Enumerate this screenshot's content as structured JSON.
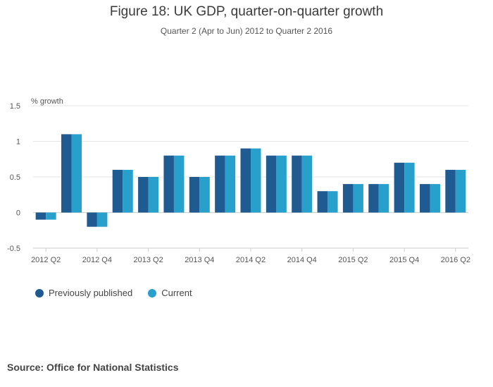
{
  "chart_data": {
    "type": "bar",
    "title": "Figure 18: UK GDP, quarter-on-quarter growth",
    "subtitle": "Quarter 2 (Apr to Jun) 2012 to Quarter 2 2016",
    "ylabel": "% growth",
    "xlabel": "",
    "ylim": [
      -0.5,
      1.5
    ],
    "yticks": [
      -0.5,
      0,
      0.5,
      1,
      1.5
    ],
    "ytick_labels": [
      "-0.5",
      "0",
      "0.5",
      "1",
      "1.5"
    ],
    "categories": [
      "2012 Q2",
      "2012 Q3",
      "2012 Q4",
      "2013 Q1",
      "2013 Q2",
      "2013 Q3",
      "2013 Q4",
      "2014 Q1",
      "2014 Q2",
      "2014 Q3",
      "2014 Q4",
      "2015 Q1",
      "2015 Q2",
      "2015 Q3",
      "2015 Q4",
      "2016 Q1",
      "2016 Q2"
    ],
    "xtick_labels": [
      "2012 Q2",
      "2012 Q4",
      "2013 Q2",
      "2013 Q4",
      "2014 Q2",
      "2014 Q4",
      "2015 Q2",
      "2015 Q4",
      "2016 Q2"
    ],
    "series": [
      {
        "name": "Previously published",
        "color": "#1f5a91",
        "values": [
          -0.1,
          1.1,
          -0.2,
          0.6,
          0.5,
          0.8,
          0.5,
          0.8,
          0.9,
          0.8,
          0.8,
          0.3,
          0.4,
          0.4,
          0.7,
          0.4,
          0.6
        ]
      },
      {
        "name": "Current",
        "color": "#27a0cc",
        "values": [
          -0.1,
          1.1,
          -0.2,
          0.6,
          0.5,
          0.8,
          0.5,
          0.8,
          0.9,
          0.8,
          0.8,
          0.3,
          0.4,
          0.4,
          0.7,
          0.4,
          0.6
        ]
      }
    ],
    "grid": true,
    "legend_position": "bottom-left"
  },
  "source": "Source: Office for National Statistics"
}
